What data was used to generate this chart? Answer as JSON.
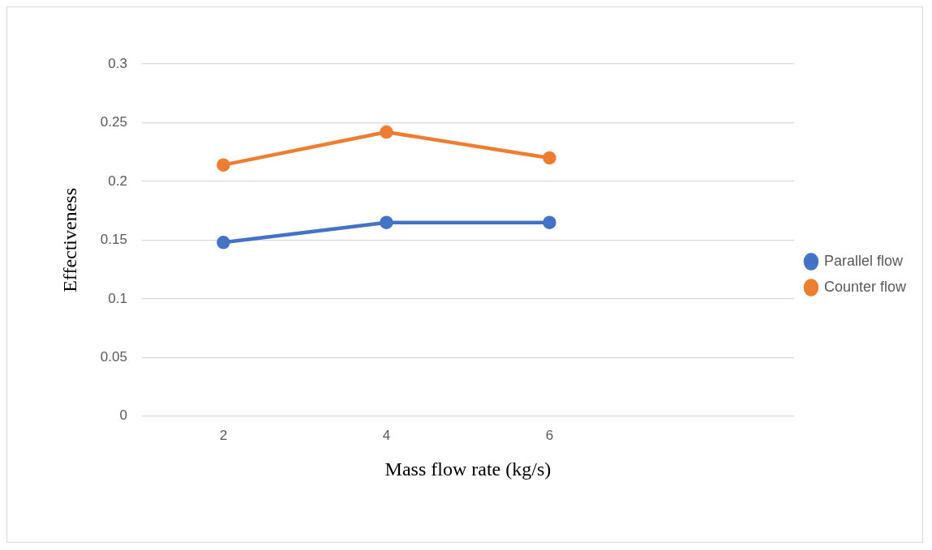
{
  "chart_data": {
    "type": "line",
    "xlabel": "Mass flow rate (kg/s)",
    "ylabel": "Effectiveness",
    "categories": [
      "2",
      "4",
      "6",
      null
    ],
    "series": [
      {
        "name": "Parallel flow",
        "color": "#4472c4",
        "values": [
          0.148,
          0.165,
          0.165,
          null
        ]
      },
      {
        "name": "Counter flow",
        "color": "#ed7d31",
        "values": [
          0.214,
          0.242,
          0.22,
          null
        ]
      }
    ],
    "ylim": [
      0,
      0.3
    ],
    "yticks": [
      0,
      0.05,
      0.1,
      0.15,
      0.2,
      0.25,
      0.3
    ],
    "grid": "y",
    "legend": "right",
    "marker": "circle",
    "line_style": "solid"
  }
}
